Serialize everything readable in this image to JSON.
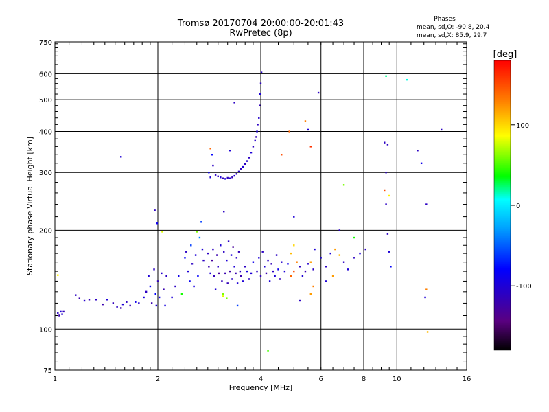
{
  "chart_data": {
    "type": "scatter",
    "title": "Tromsø 20170704 20:00:00-20:01:43",
    "subtitle": "RwPretec (8p)",
    "xlabel": "Frequency [MHz]",
    "ylabel": "Stationary phase Virtual Height [km]",
    "x_scale": "log",
    "y_scale": "log",
    "xlim": [
      1,
      16
    ],
    "ylim": [
      75,
      750
    ],
    "x_ticks": [
      1,
      2,
      4,
      6,
      8,
      10,
      16
    ],
    "y_ticks": [
      75,
      100,
      200,
      300,
      400,
      500,
      600,
      750
    ],
    "grid": true,
    "stats": {
      "heading": "Phases",
      "line_o": "mean, sd,O: -90.8, 20.4",
      "line_x": "mean, sd,X:  85.9, 29.7"
    },
    "colorbar": {
      "label": "[deg]",
      "range": [
        -180,
        180
      ],
      "ticks": [
        100,
        0,
        -100
      ]
    },
    "points": [
      [
        1.02,
        112,
        -110
      ],
      [
        1.04,
        113,
        -100
      ],
      [
        1.06,
        113,
        -115
      ],
      [
        1.03,
        110,
        -120
      ],
      [
        1.05,
        111,
        -105
      ],
      [
        1.15,
        127,
        -110
      ],
      [
        1.18,
        124,
        -120
      ],
      [
        1.22,
        122,
        -105
      ],
      [
        1.26,
        123,
        -115
      ],
      [
        1.32,
        123,
        -110
      ],
      [
        1.38,
        119,
        -120
      ],
      [
        1.42,
        123,
        -100
      ],
      [
        1.48,
        120,
        -115
      ],
      [
        1.52,
        117,
        -110
      ],
      [
        1.56,
        116,
        -125
      ],
      [
        1.58,
        119,
        -100
      ],
      [
        1.62,
        121,
        -110
      ],
      [
        1.66,
        118,
        -120
      ],
      [
        1.72,
        121,
        -90
      ],
      [
        1.76,
        120,
        -105
      ],
      [
        1.56,
        335,
        -100
      ],
      [
        1.02,
        146,
        90
      ],
      [
        1.82,
        125,
        -95
      ],
      [
        1.85,
        130,
        -110
      ],
      [
        1.88,
        145,
        -100
      ],
      [
        1.9,
        135,
        -85
      ],
      [
        1.92,
        120,
        -120
      ],
      [
        1.95,
        152,
        -110
      ],
      [
        1.97,
        128,
        -80
      ],
      [
        1.98,
        118,
        -100
      ],
      [
        2.0,
        140,
        -115
      ],
      [
        2.02,
        125,
        -90
      ],
      [
        2.05,
        148,
        -105
      ],
      [
        2.08,
        132,
        -120
      ],
      [
        2.1,
        118,
        -95
      ],
      [
        2.12,
        145,
        -110
      ],
      [
        1.96,
        230,
        -110
      ],
      [
        2.06,
        198,
        80
      ],
      [
        1.99,
        210,
        -90
      ],
      [
        2.2,
        125,
        -100
      ],
      [
        2.25,
        135,
        -110
      ],
      [
        2.3,
        145,
        -90
      ],
      [
        2.35,
        128,
        40
      ],
      [
        2.4,
        165,
        -80
      ],
      [
        2.42,
        172,
        -110
      ],
      [
        2.45,
        150,
        -100
      ],
      [
        2.48,
        140,
        -85
      ],
      [
        2.5,
        180,
        -60
      ],
      [
        2.52,
        158,
        -110
      ],
      [
        2.55,
        135,
        -95
      ],
      [
        2.58,
        168,
        -100
      ],
      [
        2.6,
        198,
        60
      ],
      [
        2.62,
        145,
        -80
      ],
      [
        2.65,
        190,
        -40
      ],
      [
        2.68,
        212,
        -60
      ],
      [
        2.7,
        175,
        -100
      ],
      [
        2.72,
        162,
        -110
      ],
      [
        2.8,
        170,
        -110
      ],
      [
        2.82,
        155,
        -120
      ],
      [
        2.85,
        148,
        -100
      ],
      [
        2.88,
        162,
        -130
      ],
      [
        2.9,
        175,
        -110
      ],
      [
        2.92,
        145,
        -115
      ],
      [
        2.95,
        132,
        -100
      ],
      [
        2.98,
        168,
        -120
      ],
      [
        3.0,
        155,
        -110
      ],
      [
        3.02,
        148,
        -130
      ],
      [
        3.05,
        180,
        -100
      ],
      [
        3.08,
        140,
        -115
      ],
      [
        3.1,
        128,
        60
      ],
      [
        3.12,
        172,
        -110
      ],
      [
        3.15,
        148,
        -120
      ],
      [
        3.18,
        162,
        -100
      ],
      [
        3.2,
        138,
        -115
      ],
      [
        3.22,
        185,
        -110
      ],
      [
        3.25,
        150,
        -125
      ],
      [
        3.28,
        168,
        -100
      ],
      [
        3.3,
        142,
        -110
      ],
      [
        3.32,
        178,
        -130
      ],
      [
        3.35,
        155,
        -100
      ],
      [
        3.38,
        148,
        -120
      ],
      [
        3.4,
        165,
        -110
      ],
      [
        3.42,
        138,
        -100
      ],
      [
        3.45,
        172,
        -115
      ],
      [
        3.48,
        150,
        -110
      ],
      [
        3.5,
        145,
        -120
      ],
      [
        3.55,
        140,
        -100
      ],
      [
        3.6,
        155,
        -110
      ],
      [
        3.65,
        150,
        -95
      ],
      [
        3.7,
        142,
        -110
      ],
      [
        3.75,
        148,
        -100
      ],
      [
        3.8,
        160,
        -90
      ],
      [
        3.12,
        228,
        -110
      ],
      [
        3.42,
        118,
        -60
      ],
      [
        3.1,
        126,
        80
      ],
      [
        3.18,
        124,
        60
      ],
      [
        2.82,
        300,
        -90
      ],
      [
        2.85,
        290,
        -100
      ],
      [
        2.9,
        315,
        -110
      ],
      [
        2.88,
        340,
        -80
      ],
      [
        2.95,
        295,
        -110
      ],
      [
        3.0,
        292,
        -110
      ],
      [
        3.05,
        290,
        -100
      ],
      [
        3.1,
        288,
        -115
      ],
      [
        3.15,
        287,
        -100
      ],
      [
        3.2,
        289,
        -110
      ],
      [
        3.25,
        288,
        -105
      ],
      [
        3.3,
        290,
        -115
      ],
      [
        3.35,
        293,
        -100
      ],
      [
        3.4,
        297,
        -110
      ],
      [
        3.45,
        302,
        -105
      ],
      [
        3.5,
        308,
        -115
      ],
      [
        3.55,
        312,
        -100
      ],
      [
        3.6,
        318,
        -110
      ],
      [
        3.65,
        325,
        -105
      ],
      [
        3.7,
        333,
        -110
      ],
      [
        3.75,
        345,
        -100
      ],
      [
        3.8,
        360,
        -110
      ],
      [
        3.85,
        375,
        -105
      ],
      [
        3.88,
        385,
        -115
      ],
      [
        3.9,
        400,
        -100
      ],
      [
        3.92,
        420,
        -110
      ],
      [
        3.95,
        440,
        -105
      ],
      [
        3.97,
        480,
        -115
      ],
      [
        3.98,
        520,
        -100
      ],
      [
        4.0,
        560,
        -110
      ],
      [
        4.02,
        605,
        -105
      ],
      [
        2.85,
        355,
        140
      ],
      [
        3.35,
        490,
        -110
      ],
      [
        3.25,
        350,
        -100
      ],
      [
        3.9,
        150,
        -110
      ],
      [
        3.95,
        165,
        -100
      ],
      [
        4.0,
        145,
        -115
      ],
      [
        4.05,
        172,
        -110
      ],
      [
        4.1,
        155,
        -100
      ],
      [
        4.15,
        148,
        -120
      ],
      [
        4.2,
        162,
        -110
      ],
      [
        4.25,
        140,
        -100
      ],
      [
        4.3,
        158,
        -115
      ],
      [
        4.35,
        150,
        -110
      ],
      [
        4.4,
        145,
        -100
      ],
      [
        4.45,
        168,
        -110
      ],
      [
        4.5,
        152,
        -90
      ],
      [
        4.55,
        142,
        -115
      ],
      [
        4.6,
        160,
        -105
      ],
      [
        4.7,
        150,
        -100
      ],
      [
        4.8,
        158,
        -90
      ],
      [
        4.9,
        145,
        140
      ],
      [
        5.0,
        150,
        150
      ],
      [
        5.1,
        160,
        130
      ],
      [
        5.2,
        155,
        -110
      ],
      [
        5.3,
        145,
        -100
      ],
      [
        5.4,
        150,
        -120
      ],
      [
        5.5,
        158,
        -105
      ],
      [
        5.6,
        160,
        120
      ],
      [
        5.7,
        152,
        -110
      ],
      [
        5.75,
        175,
        -100
      ],
      [
        4.9,
        170,
        110
      ],
      [
        5.0,
        180,
        100
      ],
      [
        4.6,
        340,
        150
      ],
      [
        4.85,
        400,
        140
      ],
      [
        5.4,
        430,
        130
      ],
      [
        5.6,
        360,
        160
      ],
      [
        5.0,
        220,
        -100
      ],
      [
        5.7,
        135,
        130
      ],
      [
        5.6,
        128,
        120
      ],
      [
        5.2,
        122,
        -110
      ],
      [
        4.2,
        86,
        50
      ],
      [
        5.5,
        405,
        -100
      ],
      [
        5.9,
        525,
        -110
      ],
      [
        6.0,
        165,
        -100
      ],
      [
        6.2,
        155,
        -110
      ],
      [
        6.4,
        170,
        -100
      ],
      [
        6.6,
        175,
        120
      ],
      [
        6.8,
        168,
        110
      ],
      [
        7.0,
        160,
        -110
      ],
      [
        7.2,
        152,
        -100
      ],
      [
        7.5,
        165,
        -110
      ],
      [
        7.8,
        170,
        -100
      ],
      [
        8.1,
        175,
        -110
      ],
      [
        7.0,
        275,
        60
      ],
      [
        6.8,
        200,
        -110
      ],
      [
        7.5,
        190,
        40
      ],
      [
        6.5,
        145,
        120
      ],
      [
        6.2,
        140,
        -100
      ],
      [
        9.3,
        590,
        20
      ],
      [
        10.7,
        575,
        10
      ],
      [
        9.2,
        370,
        -110
      ],
      [
        9.4,
        365,
        -110
      ],
      [
        9.3,
        300,
        -110
      ],
      [
        9.2,
        265,
        150
      ],
      [
        9.5,
        255,
        90
      ],
      [
        9.3,
        240,
        -110
      ],
      [
        11.5,
        350,
        -110
      ],
      [
        11.8,
        320,
        -90
      ],
      [
        12.2,
        240,
        -110
      ],
      [
        13.5,
        405,
        -110
      ],
      [
        9.4,
        195,
        -110
      ],
      [
        9.5,
        172,
        -100
      ],
      [
        9.6,
        155,
        -80
      ],
      [
        12.2,
        132,
        130
      ],
      [
        12.1,
        125,
        -100
      ],
      [
        12.3,
        98,
        110
      ]
    ]
  }
}
